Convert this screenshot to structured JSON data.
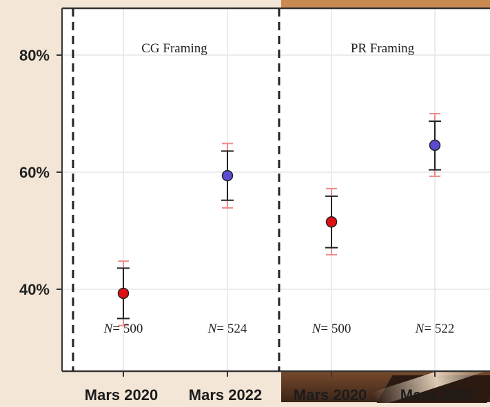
{
  "chart_data": {
    "type": "scatter",
    "title": "",
    "xlabel": "",
    "ylabel": "",
    "y_unit": "%",
    "ylim": [
      26,
      88
    ],
    "yticks": [
      40,
      60,
      80
    ],
    "ytick_labels": [
      "40%",
      "60%",
      "80%"
    ],
    "grid": true,
    "legend": "none",
    "panels": [
      {
        "title": "CG Framing",
        "points": [
          {
            "x": "Mars 2020",
            "y": 39.3,
            "ci_inner": [
              35.0,
              43.6
            ],
            "ci_outer": [
              33.8,
              44.8
            ],
            "color": "#e01010",
            "n_label": "N= 500"
          },
          {
            "x": "Mars 2022",
            "y": 59.4,
            "ci_inner": [
              55.2,
              63.6
            ],
            "ci_outer": [
              53.9,
              64.9
            ],
            "color": "#5a4bd0",
            "n_label": "N= 524"
          }
        ]
      },
      {
        "title": "PR Framing",
        "points": [
          {
            "x": "Mars 2020",
            "y": 51.5,
            "ci_inner": [
              47.1,
              55.9
            ],
            "ci_outer": [
              45.9,
              57.2
            ],
            "color": "#e01010",
            "n_label": "N= 500"
          },
          {
            "x": "Mars 2022",
            "y": 64.6,
            "ci_inner": [
              60.4,
              68.7
            ],
            "ci_outer": [
              59.3,
              70.0
            ],
            "color": "#5a4bd0",
            "n_label": "N= 522"
          }
        ]
      }
    ],
    "x_tick_labels": [
      "Mars 2020",
      "Mars 2022",
      "Mars 2020",
      "Mars 2022"
    ],
    "colors": {
      "background": "#ffffff",
      "frame": "#333333",
      "grid": "#e6e6e6",
      "ci_outer": "#f08a8a",
      "ci_inner": "#222222"
    }
  }
}
